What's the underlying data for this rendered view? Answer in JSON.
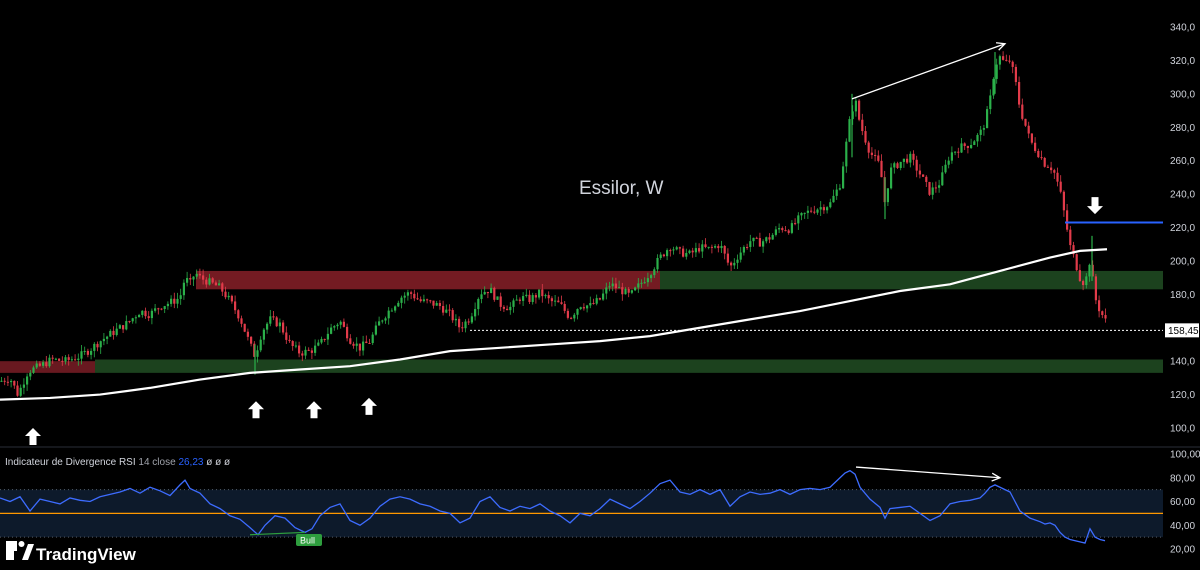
{
  "chart_data": [
    {
      "type": "candlestick",
      "title": "Essilor, W",
      "y_axis": {
        "ticks": [
          "340,0",
          "320,0",
          "300,0",
          "280,0",
          "260,0",
          "240,0",
          "220,0",
          "200,0",
          "180,0",
          "160,0",
          "140,0",
          "120,0",
          "100,0"
        ],
        "range": [
          90,
          345
        ]
      },
      "last_price": 158.45,
      "last_price_label": "158,45",
      "price_path": [
        [
          0,
          128
        ],
        [
          10,
          130
        ],
        [
          18,
          120
        ],
        [
          28,
          134
        ],
        [
          40,
          137
        ],
        [
          52,
          141
        ],
        [
          65,
          140
        ],
        [
          80,
          143
        ],
        [
          90,
          147
        ],
        [
          100,
          152
        ],
        [
          115,
          158
        ],
        [
          128,
          163
        ],
        [
          140,
          170
        ],
        [
          150,
          168
        ],
        [
          160,
          173
        ],
        [
          170,
          175
        ],
        [
          180,
          178
        ],
        [
          185,
          190
        ],
        [
          190,
          186
        ],
        [
          195,
          193
        ],
        [
          200,
          190
        ],
        [
          210,
          187
        ],
        [
          220,
          184
        ],
        [
          230,
          176
        ],
        [
          240,
          166
        ],
        [
          250,
          150
        ],
        [
          255,
          143
        ],
        [
          262,
          158
        ],
        [
          270,
          165
        ],
        [
          280,
          162
        ],
        [
          290,
          150
        ],
        [
          300,
          145
        ],
        [
          310,
          146
        ],
        [
          320,
          150
        ],
        [
          330,
          159
        ],
        [
          340,
          164
        ],
        [
          350,
          153
        ],
        [
          360,
          148
        ],
        [
          370,
          152
        ],
        [
          380,
          164
        ],
        [
          390,
          171
        ],
        [
          400,
          178
        ],
        [
          410,
          181
        ],
        [
          420,
          176
        ],
        [
          430,
          175
        ],
        [
          440,
          173
        ],
        [
          450,
          168
        ],
        [
          460,
          160
        ],
        [
          470,
          166
        ],
        [
          480,
          181
        ],
        [
          490,
          183
        ],
        [
          500,
          174
        ],
        [
          510,
          172
        ],
        [
          520,
          178
        ],
        [
          530,
          177
        ],
        [
          540,
          181
        ],
        [
          550,
          176
        ],
        [
          560,
          174
        ],
        [
          570,
          166
        ],
        [
          580,
          174
        ],
        [
          590,
          173
        ],
        [
          600,
          177
        ],
        [
          610,
          186
        ],
        [
          620,
          183
        ],
        [
          630,
          179
        ],
        [
          640,
          186
        ],
        [
          650,
          193
        ],
        [
          660,
          202
        ],
        [
          670,
          209
        ],
        [
          680,
          205
        ],
        [
          690,
          204
        ],
        [
          700,
          208
        ],
        [
          710,
          207
        ],
        [
          720,
          210
        ],
        [
          730,
          196
        ],
        [
          740,
          205
        ],
        [
          750,
          212
        ],
        [
          760,
          211
        ],
        [
          770,
          214
        ],
        [
          780,
          220
        ],
        [
          790,
          219
        ],
        [
          800,
          226
        ],
        [
          810,
          230
        ],
        [
          820,
          232
        ],
        [
          830,
          234
        ],
        [
          840,
          246
        ],
        [
          845,
          265
        ],
        [
          850,
          285
        ],
        [
          855,
          297
        ],
        [
          860,
          282
        ],
        [
          870,
          265
        ],
        [
          880,
          257
        ],
        [
          885,
          234
        ],
        [
          890,
          254
        ],
        [
          900,
          259
        ],
        [
          910,
          262
        ],
        [
          920,
          252
        ],
        [
          930,
          241
        ],
        [
          940,
          247
        ],
        [
          950,
          264
        ],
        [
          960,
          268
        ],
        [
          970,
          270
        ],
        [
          980,
          276
        ],
        [
          985,
          283
        ],
        [
          990,
          296
        ],
        [
          995,
          317
        ],
        [
          1000,
          322
        ],
        [
          1005,
          318
        ],
        [
          1010,
          320
        ],
        [
          1015,
          309
        ],
        [
          1020,
          291
        ],
        [
          1025,
          282
        ],
        [
          1030,
          272
        ],
        [
          1040,
          263
        ],
        [
          1045,
          258
        ],
        [
          1050,
          257
        ],
        [
          1055,
          252
        ],
        [
          1060,
          242
        ],
        [
          1065,
          226
        ],
        [
          1070,
          209
        ],
        [
          1075,
          200
        ],
        [
          1080,
          190
        ],
        [
          1085,
          186
        ],
        [
          1090,
          201
        ],
        [
          1095,
          178
        ],
        [
          1100,
          170
        ],
        [
          1105,
          165
        ],
        [
          1108,
          160
        ]
      ],
      "ma_path": [
        [
          0,
          117
        ],
        [
          50,
          118
        ],
        [
          100,
          120
        ],
        [
          150,
          124
        ],
        [
          200,
          129
        ],
        [
          250,
          133
        ],
        [
          300,
          135
        ],
        [
          350,
          137
        ],
        [
          400,
          141
        ],
        [
          450,
          146
        ],
        [
          500,
          148
        ],
        [
          550,
          150
        ],
        [
          600,
          152
        ],
        [
          650,
          155
        ],
        [
          700,
          160
        ],
        [
          750,
          165
        ],
        [
          800,
          170
        ],
        [
          850,
          176
        ],
        [
          900,
          182
        ],
        [
          950,
          186
        ],
        [
          1000,
          194
        ],
        [
          1050,
          202
        ],
        [
          1080,
          206
        ],
        [
          1107,
          207
        ]
      ],
      "zones": [
        {
          "color": "#7a1c24",
          "price": [
            183,
            194
          ],
          "x": [
            196,
            660
          ]
        },
        {
          "color": "#6e1a22",
          "price": [
            133,
            140
          ],
          "x": [
            0,
            95
          ]
        },
        {
          "color": "#1e4620",
          "price": [
            183,
            194
          ],
          "x": [
            660,
            1163
          ]
        },
        {
          "color": "#1e4620",
          "price": [
            133,
            141
          ],
          "x": [
            95,
            1163
          ]
        }
      ],
      "blue_level": {
        "price": 223,
        "x": [
          1065,
          1163
        ],
        "color": "#2962ff"
      },
      "dotted_level": {
        "price": 158.45,
        "x": [
          470,
          1163
        ]
      },
      "divergence_arrow": {
        "from": [
          852,
          297
        ],
        "to": [
          1005,
          330
        ]
      },
      "up_arrows": [
        [
          33,
          100
        ],
        [
          256,
          116
        ],
        [
          314,
          116
        ],
        [
          369,
          118
        ]
      ],
      "down_arrows": [
        [
          1095,
          228
        ]
      ]
    },
    {
      "type": "line",
      "name": "Indicateur de Divergence RSI",
      "params": "14 close",
      "value_label": "26,23",
      "extra": "ø ø ø",
      "y_axis": {
        "ticks": [
          "100,00",
          "80,00",
          "60,00",
          "40,00",
          "20,00"
        ],
        "range": [
          15,
          103
        ]
      },
      "bands": {
        "upper": 70,
        "lower": 30,
        "mid": 50,
        "mid_color": "#ff9800"
      },
      "rsi_path": [
        [
          0,
          63
        ],
        [
          10,
          60
        ],
        [
          20,
          64
        ],
        [
          30,
          52
        ],
        [
          40,
          62
        ],
        [
          50,
          60
        ],
        [
          60,
          58
        ],
        [
          70,
          63
        ],
        [
          80,
          61
        ],
        [
          90,
          60
        ],
        [
          100,
          64
        ],
        [
          110,
          66
        ],
        [
          120,
          68
        ],
        [
          130,
          71
        ],
        [
          140,
          67
        ],
        [
          150,
          72
        ],
        [
          160,
          69
        ],
        [
          170,
          65
        ],
        [
          180,
          74
        ],
        [
          185,
          78
        ],
        [
          190,
          71
        ],
        [
          200,
          67
        ],
        [
          210,
          58
        ],
        [
          220,
          54
        ],
        [
          230,
          48
        ],
        [
          240,
          45
        ],
        [
          250,
          38
        ],
        [
          258,
          32
        ],
        [
          265,
          40
        ],
        [
          275,
          48
        ],
        [
          285,
          46
        ],
        [
          295,
          38
        ],
        [
          305,
          34
        ],
        [
          312,
          37
        ],
        [
          320,
          48
        ],
        [
          330,
          55
        ],
        [
          340,
          58
        ],
        [
          350,
          44
        ],
        [
          360,
          40
        ],
        [
          370,
          46
        ],
        [
          380,
          56
        ],
        [
          390,
          62
        ],
        [
          400,
          64
        ],
        [
          410,
          62
        ],
        [
          420,
          58
        ],
        [
          430,
          56
        ],
        [
          440,
          52
        ],
        [
          450,
          50
        ],
        [
          460,
          42
        ],
        [
          470,
          46
        ],
        [
          480,
          60
        ],
        [
          490,
          64
        ],
        [
          500,
          55
        ],
        [
          510,
          52
        ],
        [
          520,
          56
        ],
        [
          530,
          54
        ],
        [
          540,
          58
        ],
        [
          550,
          52
        ],
        [
          560,
          48
        ],
        [
          570,
          42
        ],
        [
          580,
          50
        ],
        [
          590,
          48
        ],
        [
          600,
          54
        ],
        [
          610,
          62
        ],
        [
          620,
          58
        ],
        [
          630,
          54
        ],
        [
          640,
          60
        ],
        [
          650,
          67
        ],
        [
          660,
          75
        ],
        [
          670,
          78
        ],
        [
          680,
          68
        ],
        [
          690,
          66
        ],
        [
          700,
          70
        ],
        [
          710,
          66
        ],
        [
          720,
          70
        ],
        [
          730,
          56
        ],
        [
          740,
          64
        ],
        [
          750,
          68
        ],
        [
          760,
          66
        ],
        [
          770,
          67
        ],
        [
          780,
          70
        ],
        [
          790,
          66
        ],
        [
          800,
          70
        ],
        [
          810,
          71
        ],
        [
          820,
          70
        ],
        [
          830,
          72
        ],
        [
          840,
          80
        ],
        [
          845,
          84
        ],
        [
          850,
          86
        ],
        [
          855,
          83
        ],
        [
          860,
          72
        ],
        [
          870,
          62
        ],
        [
          880,
          55
        ],
        [
          885,
          46
        ],
        [
          890,
          54
        ],
        [
          900,
          55
        ],
        [
          910,
          56
        ],
        [
          920,
          50
        ],
        [
          930,
          44
        ],
        [
          940,
          48
        ],
        [
          950,
          58
        ],
        [
          960,
          60
        ],
        [
          970,
          61
        ],
        [
          980,
          63
        ],
        [
          985,
          67
        ],
        [
          990,
          72
        ],
        [
          995,
          74
        ],
        [
          1000,
          72
        ],
        [
          1005,
          70
        ],
        [
          1010,
          68
        ],
        [
          1015,
          60
        ],
        [
          1020,
          52
        ],
        [
          1025,
          49
        ],
        [
          1030,
          46
        ],
        [
          1040,
          43
        ],
        [
          1045,
          41
        ],
        [
          1050,
          42
        ],
        [
          1055,
          40
        ],
        [
          1060,
          34
        ],
        [
          1065,
          30
        ],
        [
          1070,
          28
        ],
        [
          1080,
          26
        ],
        [
          1085,
          25
        ],
        [
          1090,
          37
        ],
        [
          1095,
          30
        ],
        [
          1100,
          28
        ],
        [
          1105,
          27
        ]
      ],
      "divergence_arrow": {
        "from": [
          856,
          89
        ],
        "to": [
          1000,
          80
        ]
      },
      "bull_line": {
        "from": [
          250,
          32
        ],
        "to": [
          305,
          34
        ]
      },
      "bull_label": "Bull"
    }
  ],
  "branding": {
    "logo_text": "TradingView"
  }
}
